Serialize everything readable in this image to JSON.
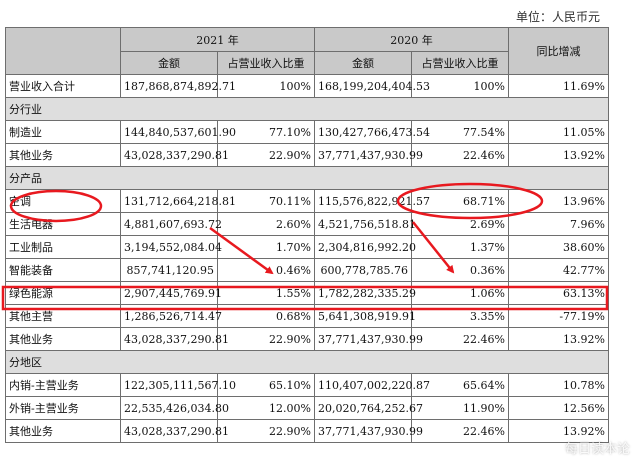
{
  "unit_label": "单位：人民币元",
  "headers": {
    "year_2021": "2021 年",
    "year_2020": "2020 年",
    "amount": "金额",
    "share": "占营业收入比重",
    "yoy": "同比增减"
  },
  "rows": [
    {
      "type": "data",
      "label": "营业收入合计",
      "amt21": "187,868,874,892.71",
      "pct21": "100%",
      "amt20": "168,199,204,404.53",
      "pct20": "100%",
      "yoy": "11.69%"
    },
    {
      "type": "section",
      "label": "分行业"
    },
    {
      "type": "data",
      "label": "制造业",
      "amt21": "144,840,537,601.90",
      "pct21": "77.10%",
      "amt20": "130,427,766,473.54",
      "pct20": "77.54%",
      "yoy": "11.05%"
    },
    {
      "type": "data",
      "label": "其他业务",
      "amt21": "43,028,337,290.81",
      "pct21": "22.90%",
      "amt20": "37,771,437,930.99",
      "pct20": "22.46%",
      "yoy": "13.92%"
    },
    {
      "type": "section",
      "label": "分产品"
    },
    {
      "type": "data",
      "label": "空调",
      "amt21": "131,712,664,218.81",
      "pct21": "70.11%",
      "amt20": "115,576,822,921.57",
      "pct20": "68.71%",
      "yoy": "13.96%"
    },
    {
      "type": "data",
      "label": "生活电器",
      "amt21": "4,881,607,693.72",
      "pct21": "2.60%",
      "amt20": "4,521,756,518.81",
      "pct20": "2.69%",
      "yoy": "7.96%"
    },
    {
      "type": "data",
      "label": "工业制品",
      "amt21": "3,194,552,084.04",
      "pct21": "1.70%",
      "amt20": "2,304,816,992.20",
      "pct20": "1.37%",
      "yoy": "38.60%"
    },
    {
      "type": "data",
      "label": "智能装备",
      "amt21": "857,741,120.95",
      "pct21": "0.46%",
      "amt20": "600,778,785.76",
      "pct20": "0.36%",
      "yoy": "42.77%"
    },
    {
      "type": "data",
      "label": "绿色能源",
      "amt21": "2,907,445,769.91",
      "pct21": "1.55%",
      "amt20": "1,782,282,335.29",
      "pct20": "1.06%",
      "yoy": "63.13%"
    },
    {
      "type": "data",
      "label": "其他主营",
      "amt21": "1,286,526,714.47",
      "pct21": "0.68%",
      "amt20": "5,641,308,919.91",
      "pct20": "3.35%",
      "yoy": "-77.19%"
    },
    {
      "type": "data",
      "label": "其他业务",
      "amt21": "43,028,337,290.81",
      "pct21": "22.90%",
      "amt20": "37,771,437,930.99",
      "pct20": "22.46%",
      "yoy": "13.92%"
    },
    {
      "type": "section",
      "label": "分地区"
    },
    {
      "type": "data",
      "label": "内销-主营业务",
      "amt21": "122,305,111,567.10",
      "pct21": "65.10%",
      "amt20": "110,407,002,220.87",
      "pct20": "65.64%",
      "yoy": "10.78%"
    },
    {
      "type": "data",
      "label": "外销-主营业务",
      "amt21": "22,535,426,034.80",
      "pct21": "12.00%",
      "amt20": "20,020,764,252.67",
      "pct20": "11.90%",
      "yoy": "12.56%"
    },
    {
      "type": "data",
      "label": "其他业务",
      "amt21": "43,028,337,290.81",
      "pct21": "22.90%",
      "amt20": "37,771,437,930.99",
      "pct20": "22.46%",
      "yoy": "13.92%"
    }
  ],
  "annotation_color": "#e8191f",
  "watermark": "每日读本论"
}
